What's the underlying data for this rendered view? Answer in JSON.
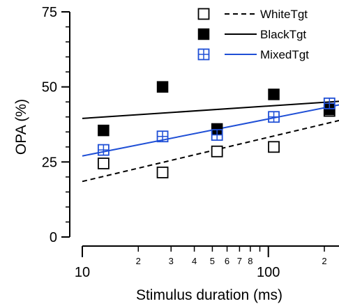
{
  "chart_data": {
    "type": "scatter",
    "title": "",
    "xlabel": "Stimulus duration (ms)",
    "ylabel": "OPA (%)",
    "x_scale": "log",
    "xlim": [
      9.5,
      240
    ],
    "ylim": [
      0,
      75
    ],
    "x_ticks": [
      {
        "value": 10,
        "label": "10",
        "major": true
      },
      {
        "value": 20,
        "label": "2",
        "major": false
      },
      {
        "value": 30,
        "label": "3",
        "major": false
      },
      {
        "value": 40,
        "label": "4",
        "major": false
      },
      {
        "value": 50,
        "label": "5",
        "major": false
      },
      {
        "value": 60,
        "label": "6",
        "major": false
      },
      {
        "value": 70,
        "label": "7",
        "major": false
      },
      {
        "value": 80,
        "label": "8",
        "major": false
      },
      {
        "value": 90,
        "label": "",
        "major": false
      },
      {
        "value": 100,
        "label": "100",
        "major": true
      },
      {
        "value": 200,
        "label": "2",
        "major": false
      }
    ],
    "y_ticks": [
      {
        "value": 0,
        "label": "0"
      },
      {
        "value": 25,
        "label": "25"
      },
      {
        "value": 50,
        "label": "50"
      },
      {
        "value": 75,
        "label": "75"
      }
    ],
    "y_minor_step": 5,
    "grid": false,
    "legend_position": "top-right",
    "series": [
      {
        "name": "WhiteTgt",
        "marker": "open-square",
        "line_style": "dashed",
        "color": "#000000",
        "x": [
          13,
          27,
          53,
          107,
          213
        ],
        "y": [
          24.5,
          21.5,
          28.5,
          30,
          42
        ],
        "fit": {
          "x": [
            10,
            240
          ],
          "y": [
            18.5,
            38.8
          ]
        }
      },
      {
        "name": "BlackTgt",
        "marker": "filled-square",
        "line_style": "solid",
        "color": "#000000",
        "x": [
          13,
          27,
          53,
          107,
          213
        ],
        "y": [
          35.5,
          50,
          36,
          47.5,
          42.5
        ],
        "fit": {
          "x": [
            10,
            240
          ],
          "y": [
            39.5,
            45.2
          ]
        }
      },
      {
        "name": "MixedTgt",
        "marker": "crossed-square",
        "line_style": "solid",
        "color": "#1f4fd6",
        "x": [
          13,
          27,
          53,
          107,
          213
        ],
        "y": [
          29,
          33.5,
          34,
          40,
          44.5
        ],
        "fit": {
          "x": [
            10,
            240
          ],
          "y": [
            27,
            44
          ]
        }
      }
    ]
  }
}
